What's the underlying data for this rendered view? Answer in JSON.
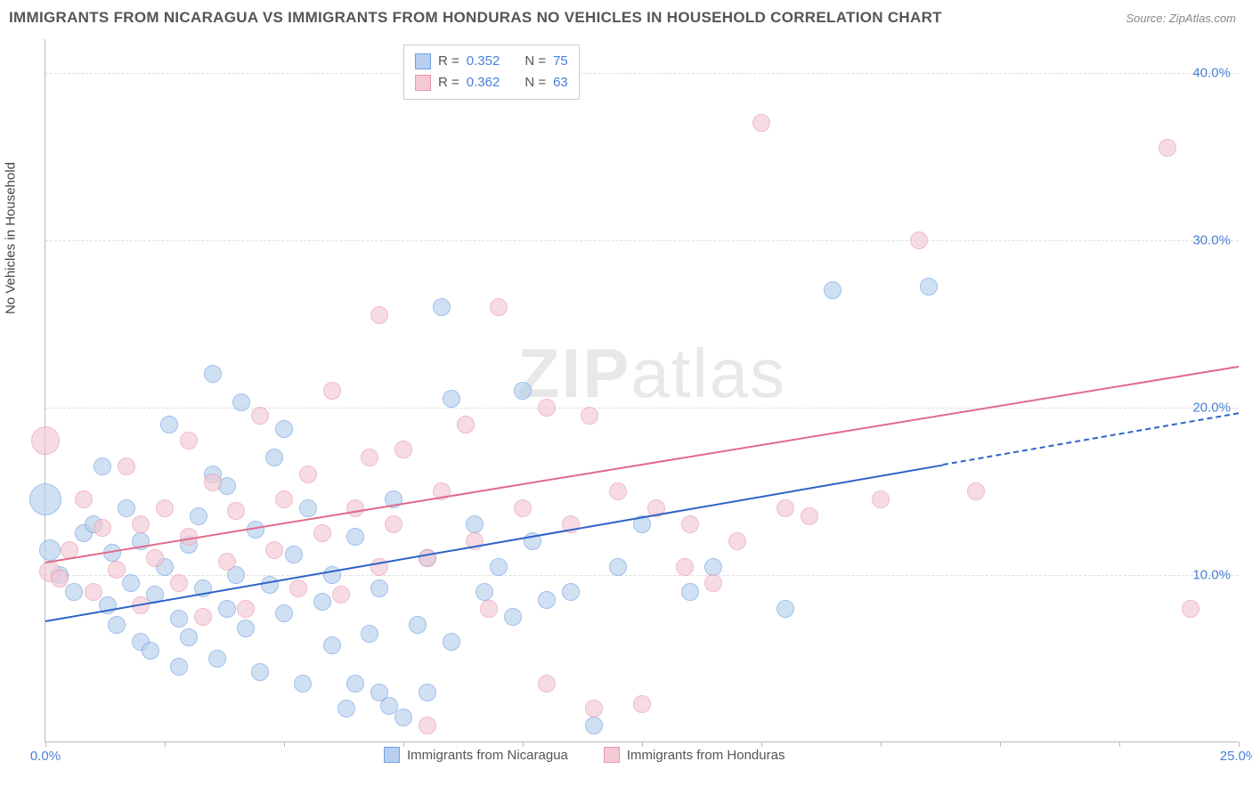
{
  "header": {
    "title": "IMMIGRANTS FROM NICARAGUA VS IMMIGRANTS FROM HONDURAS NO VEHICLES IN HOUSEHOLD CORRELATION CHART",
    "source": "Source: ZipAtlas.com"
  },
  "chart": {
    "type": "scatter",
    "ylabel": "No Vehicles in Household",
    "watermark": "ZIPatlas",
    "background_color": "#ffffff",
    "grid_color": "#dddddd",
    "axis_color": "#bbbbbb",
    "tick_label_color": "#4a7fd8",
    "xlim": [
      0,
      25
    ],
    "ylim": [
      0,
      42
    ],
    "xticks": [
      0,
      2.5,
      5,
      7.5,
      10,
      12.5,
      15,
      17.5,
      20,
      22.5,
      25
    ],
    "xtick_labels": {
      "0": "0.0%",
      "25": "25.0%"
    },
    "yticks": [
      10,
      20,
      30,
      40
    ],
    "ytick_labels": {
      "10": "10.0%",
      "20": "20.0%",
      "30": "30.0%",
      "40": "40.0%"
    },
    "point_radius": 10,
    "point_stroke_width": 1,
    "trend_line_width": 2,
    "series": [
      {
        "name": "Immigrants from Nicaragua",
        "fill": "#b8d0ee",
        "stroke": "#6e9fe0",
        "fill_opacity": 0.65,
        "r_value": "0.352",
        "n_value": "75",
        "trend": {
          "x1": 0,
          "y1": 7.3,
          "x2": 25,
          "y2": 19.7,
          "color": "#2d63c8",
          "dashed_from_x": 18.8
        },
        "points": [
          [
            0.0,
            14.5,
            18
          ],
          [
            0.1,
            11.5,
            12
          ],
          [
            0.3,
            10.0,
            10
          ],
          [
            0.6,
            9.0,
            10
          ],
          [
            0.8,
            12.5,
            10
          ],
          [
            1.0,
            13.0,
            10
          ],
          [
            1.2,
            16.5,
            10
          ],
          [
            1.3,
            8.2,
            10
          ],
          [
            1.4,
            11.3,
            10
          ],
          [
            1.5,
            7.0,
            10
          ],
          [
            1.7,
            14.0,
            10
          ],
          [
            1.8,
            9.5,
            10
          ],
          [
            2.0,
            6.0,
            10
          ],
          [
            2.0,
            12.0,
            10
          ],
          [
            2.2,
            5.5,
            10
          ],
          [
            2.3,
            8.8,
            10
          ],
          [
            2.5,
            10.5,
            10
          ],
          [
            2.6,
            19.0,
            10
          ],
          [
            2.8,
            7.4,
            10
          ],
          [
            2.8,
            4.5,
            10
          ],
          [
            3.0,
            11.8,
            10
          ],
          [
            3.0,
            6.3,
            10
          ],
          [
            3.2,
            13.5,
            10
          ],
          [
            3.3,
            9.2,
            10
          ],
          [
            3.5,
            16.0,
            10
          ],
          [
            3.6,
            5.0,
            10
          ],
          [
            3.8,
            8.0,
            10
          ],
          [
            3.8,
            15.3,
            10
          ],
          [
            4.0,
            10.0,
            10
          ],
          [
            4.1,
            20.3,
            10
          ],
          [
            4.2,
            6.8,
            10
          ],
          [
            4.4,
            12.7,
            10
          ],
          [
            4.5,
            4.2,
            10
          ],
          [
            4.7,
            9.4,
            10
          ],
          [
            5.0,
            7.7,
            10
          ],
          [
            5.0,
            18.7,
            10
          ],
          [
            5.2,
            11.2,
            10
          ],
          [
            5.4,
            3.5,
            10
          ],
          [
            5.5,
            14.0,
            10
          ],
          [
            5.8,
            8.4,
            10
          ],
          [
            6.0,
            5.8,
            10
          ],
          [
            6.0,
            10.0,
            10
          ],
          [
            6.3,
            2.0,
            10
          ],
          [
            6.5,
            12.3,
            10
          ],
          [
            6.8,
            6.5,
            10
          ],
          [
            7.0,
            3.0,
            10
          ],
          [
            7.0,
            9.2,
            10
          ],
          [
            7.2,
            2.2,
            10
          ],
          [
            7.5,
            1.5,
            10
          ],
          [
            7.8,
            7.0,
            10
          ],
          [
            8.0,
            11.0,
            10
          ],
          [
            8.0,
            3.0,
            10
          ],
          [
            8.3,
            26.0,
            10
          ],
          [
            8.5,
            6.0,
            10
          ],
          [
            8.5,
            20.5,
            10
          ],
          [
            9.0,
            13.0,
            10
          ],
          [
            9.2,
            9.0,
            10
          ],
          [
            9.5,
            10.5,
            10
          ],
          [
            10.0,
            21.0,
            10
          ],
          [
            10.2,
            12.0,
            10
          ],
          [
            10.5,
            8.5,
            10
          ],
          [
            11.0,
            9.0,
            10
          ],
          [
            11.5,
            1.0,
            10
          ],
          [
            12.0,
            10.5,
            10
          ],
          [
            12.5,
            13.0,
            10
          ],
          [
            13.5,
            9.0,
            10
          ],
          [
            14.0,
            10.5,
            10
          ],
          [
            15.5,
            8.0,
            10
          ],
          [
            16.5,
            27.0,
            10
          ],
          [
            18.5,
            27.2,
            10
          ],
          [
            3.5,
            22.0,
            10
          ],
          [
            4.8,
            17.0,
            10
          ],
          [
            6.5,
            3.5,
            10
          ],
          [
            7.3,
            14.5,
            10
          ],
          [
            9.8,
            7.5,
            10
          ]
        ]
      },
      {
        "name": "Immigrants from Honduras",
        "fill": "#f4c9d4",
        "stroke": "#e797ae",
        "fill_opacity": 0.65,
        "r_value": "0.362",
        "n_value": "63",
        "trend": {
          "x1": 0,
          "y1": 10.8,
          "x2": 25,
          "y2": 22.5,
          "color": "#e06a8c",
          "dashed_from_x": null
        },
        "points": [
          [
            0.0,
            18.0,
            16
          ],
          [
            0.1,
            10.2,
            12
          ],
          [
            0.3,
            9.8,
            10
          ],
          [
            0.5,
            11.5,
            10
          ],
          [
            0.8,
            14.5,
            10
          ],
          [
            1.0,
            9.0,
            10
          ],
          [
            1.2,
            12.8,
            10
          ],
          [
            1.5,
            10.3,
            10
          ],
          [
            1.7,
            16.5,
            10
          ],
          [
            2.0,
            8.2,
            10
          ],
          [
            2.0,
            13.0,
            10
          ],
          [
            2.3,
            11.0,
            10
          ],
          [
            2.5,
            14.0,
            10
          ],
          [
            2.8,
            9.5,
            10
          ],
          [
            3.0,
            18.0,
            10
          ],
          [
            3.0,
            12.3,
            10
          ],
          [
            3.3,
            7.5,
            10
          ],
          [
            3.5,
            15.5,
            10
          ],
          [
            3.8,
            10.8,
            10
          ],
          [
            4.0,
            13.8,
            10
          ],
          [
            4.2,
            8.0,
            10
          ],
          [
            4.5,
            19.5,
            10
          ],
          [
            4.8,
            11.5,
            10
          ],
          [
            5.0,
            14.5,
            10
          ],
          [
            5.3,
            9.2,
            10
          ],
          [
            5.5,
            16.0,
            10
          ],
          [
            5.8,
            12.5,
            10
          ],
          [
            6.0,
            21.0,
            10
          ],
          [
            6.2,
            8.8,
            10
          ],
          [
            6.5,
            14.0,
            10
          ],
          [
            7.0,
            10.5,
            10
          ],
          [
            7.0,
            25.5,
            10
          ],
          [
            7.3,
            13.0,
            10
          ],
          [
            7.5,
            17.5,
            10
          ],
          [
            8.0,
            11.0,
            10
          ],
          [
            8.0,
            1.0,
            10
          ],
          [
            8.3,
            15.0,
            10
          ],
          [
            8.8,
            19.0,
            10
          ],
          [
            9.0,
            12.0,
            10
          ],
          [
            9.3,
            8.0,
            10
          ],
          [
            9.5,
            26.0,
            10
          ],
          [
            10.0,
            14.0,
            10
          ],
          [
            10.5,
            20.0,
            10
          ],
          [
            10.5,
            3.5,
            10
          ],
          [
            11.0,
            13.0,
            10
          ],
          [
            11.4,
            19.5,
            10
          ],
          [
            11.5,
            2.0,
            10
          ],
          [
            12.0,
            15.0,
            10
          ],
          [
            12.5,
            2.3,
            10
          ],
          [
            12.8,
            14.0,
            10
          ],
          [
            13.4,
            10.5,
            10
          ],
          [
            13.5,
            13.0,
            10
          ],
          [
            14.0,
            9.5,
            10
          ],
          [
            14.5,
            12.0,
            10
          ],
          [
            15.0,
            37.0,
            10
          ],
          [
            15.5,
            14.0,
            10
          ],
          [
            16.0,
            13.5,
            10
          ],
          [
            17.5,
            14.5,
            10
          ],
          [
            18.3,
            30.0,
            10
          ],
          [
            19.5,
            15.0,
            10
          ],
          [
            23.5,
            35.5,
            10
          ],
          [
            24.0,
            8.0,
            10
          ],
          [
            6.8,
            17.0,
            10
          ]
        ]
      }
    ],
    "legend_top": {
      "r_label": "R =",
      "n_label": "N ="
    },
    "legend_bottom": [
      {
        "label": "Immigrants from Nicaragua",
        "fill": "#b8d0ee",
        "stroke": "#6e9fe0"
      },
      {
        "label": "Immigrants from Honduras",
        "fill": "#f4c9d4",
        "stroke": "#e797ae"
      }
    ]
  }
}
